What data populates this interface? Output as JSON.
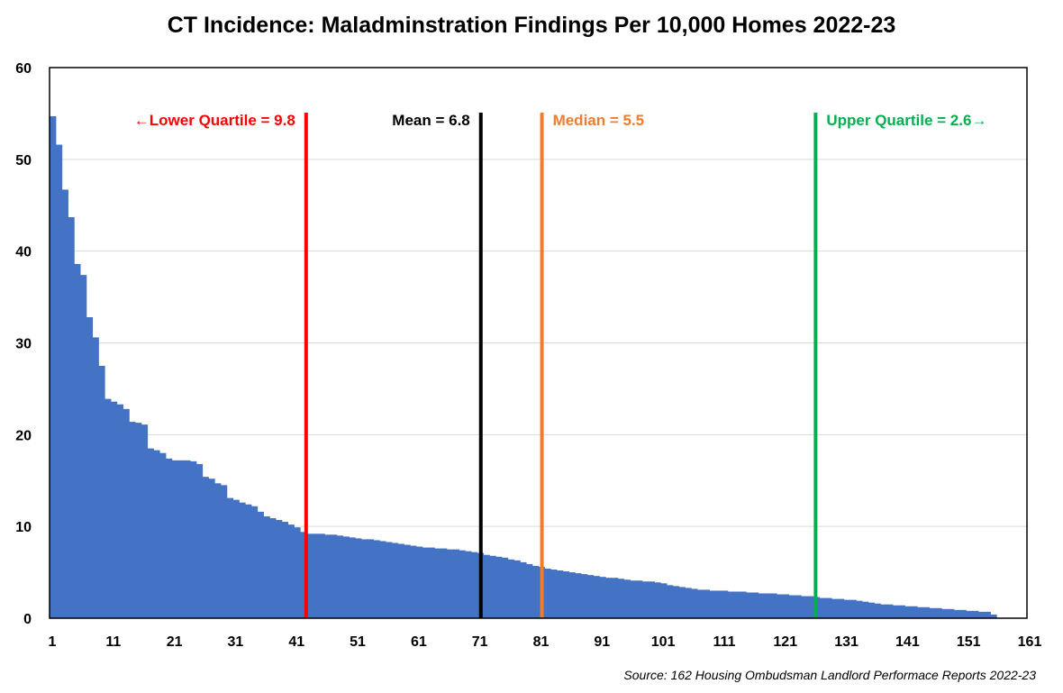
{
  "chart_data": {
    "type": "bar",
    "title": "CT Incidence: Maladminstration Findings Per 10,000 Homes 2022-23",
    "source": "Source: 162 Housing Ombudsman Landlord Performace Reports 2022-23",
    "xlabel": "",
    "ylabel": "",
    "ylim": [
      0,
      60
    ],
    "yticks": [
      0,
      10,
      20,
      30,
      40,
      50,
      60
    ],
    "xlim": [
      1,
      161
    ],
    "xticks": [
      1,
      11,
      21,
      31,
      41,
      51,
      61,
      71,
      81,
      91,
      101,
      111,
      121,
      131,
      141,
      151,
      161
    ],
    "grid": true,
    "bar_color": "#4472C4",
    "series": [
      {
        "values": [
          54.7,
          51.6,
          46.7,
          43.7,
          38.6,
          37.4,
          32.8,
          30.6,
          27.5,
          23.9,
          23.6,
          23.3,
          22.8,
          21.4,
          21.3,
          21.1,
          18.5,
          18.3,
          18.0,
          17.4,
          17.2,
          17.2,
          17.2,
          17.1,
          16.8,
          15.4,
          15.2,
          14.7,
          14.5,
          13.1,
          12.9,
          12.6,
          12.4,
          12.2,
          11.6,
          11.1,
          10.9,
          10.7,
          10.5,
          10.2,
          9.9,
          9.4,
          9.2,
          9.2,
          9.2,
          9.1,
          9.1,
          9.0,
          8.9,
          8.8,
          8.7,
          8.6,
          8.6,
          8.5,
          8.4,
          8.3,
          8.2,
          8.1,
          8.0,
          7.9,
          7.8,
          7.7,
          7.7,
          7.6,
          7.6,
          7.5,
          7.5,
          7.4,
          7.3,
          7.2,
          7.1,
          6.9,
          6.8,
          6.7,
          6.6,
          6.4,
          6.3,
          6.1,
          5.9,
          5.7,
          5.6,
          5.4,
          5.3,
          5.2,
          5.1,
          5.0,
          4.9,
          4.8,
          4.7,
          4.6,
          4.5,
          4.4,
          4.4,
          4.3,
          4.2,
          4.1,
          4.1,
          4.0,
          4.0,
          3.9,
          3.8,
          3.6,
          3.5,
          3.4,
          3.3,
          3.2,
          3.1,
          3.1,
          3.0,
          3.0,
          3.0,
          2.9,
          2.9,
          2.9,
          2.8,
          2.8,
          2.7,
          2.7,
          2.7,
          2.6,
          2.6,
          2.5,
          2.5,
          2.4,
          2.4,
          2.3,
          2.2,
          2.2,
          2.1,
          2.1,
          2.0,
          2.0,
          1.9,
          1.8,
          1.7,
          1.6,
          1.5,
          1.5,
          1.4,
          1.4,
          1.3,
          1.3,
          1.2,
          1.2,
          1.1,
          1.1,
          1.0,
          1.0,
          0.9,
          0.9,
          0.8,
          0.8,
          0.7,
          0.7,
          0.4
        ]
      }
    ],
    "reference_lines": [
      {
        "x": 43.0,
        "color": "#FF0000",
        "label": "←Lower Quartile = 9.8",
        "label_side": "left"
      },
      {
        "x": 71.6,
        "color": "#000000",
        "label": "Mean = 6.8",
        "label_side": "left"
      },
      {
        "x": 81.6,
        "color": "#ED7D31",
        "label": "Median = 5.5",
        "label_side": "right"
      },
      {
        "x": 126.4,
        "color": "#00B050",
        "label": "Upper Quartile = 2.6→",
        "label_side": "right"
      }
    ]
  }
}
